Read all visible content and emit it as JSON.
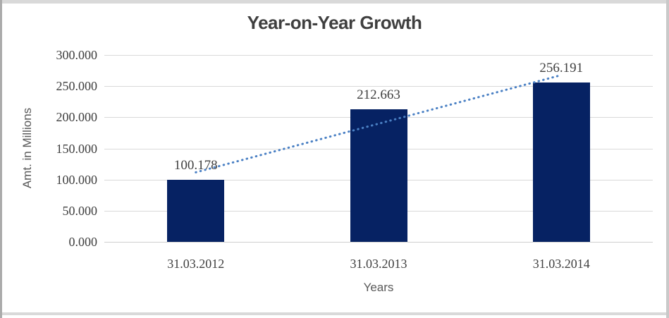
{
  "chart_data": {
    "type": "bar",
    "title": "Year-on-Year Growth",
    "categories": [
      "31.03.2012",
      "31.03.2013",
      "31.03.2014"
    ],
    "values": [
      100.178,
      212.663,
      256.191
    ],
    "data_labels": [
      "100.178",
      "212.663",
      "256.191"
    ],
    "xlabel": "Years",
    "ylabel": "Amt. in Millions",
    "ylim": [
      0,
      300
    ],
    "ytick_step": 50,
    "yticks": [
      "300.000",
      "250.000",
      "200.000",
      "150.000",
      "100.000",
      "50.000",
      "0.000"
    ],
    "grid": "horizontal",
    "legend": "none",
    "trendline": {
      "type": "linear",
      "style": "dotted"
    }
  },
  "colors": {
    "bar": "#062263",
    "trendline": "#4a80c4",
    "gridline": "#d9d9d9",
    "zero_line": "#cfcfcf",
    "tick_text": "#3f3f3f",
    "axis_title_text": "#595959",
    "title_text": "#3f3f3f",
    "frame_light": "#d9d9d9",
    "frame_left": "#ababab",
    "frame_right": "#c9c9c9",
    "background": "#ffffff"
  }
}
